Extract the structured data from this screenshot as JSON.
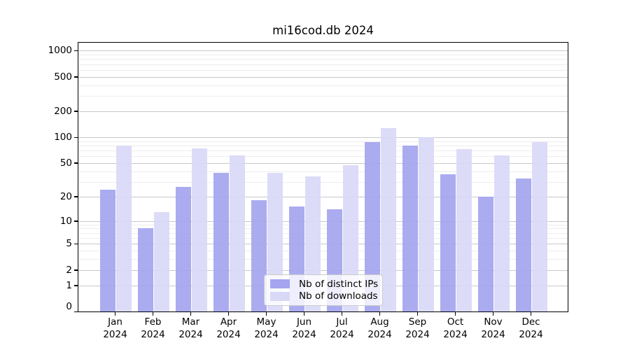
{
  "title": "mi16cod.db 2024",
  "chart_data": {
    "type": "bar",
    "title": "mi16cod.db 2024",
    "categories": [
      "Jan",
      "Feb",
      "Mar",
      "Apr",
      "May",
      "Jun",
      "Jul",
      "Aug",
      "Sep",
      "Oct",
      "Nov",
      "Dec"
    ],
    "x_tick_second_line": "2024",
    "series": [
      {
        "name": "Nb of distinct IPs",
        "color": "#a4a4ef",
        "values": [
          24,
          8,
          26,
          38,
          18,
          15,
          14,
          88,
          80,
          37,
          20,
          33
        ]
      },
      {
        "name": "Nb of downloads",
        "color": "#d9d9f7",
        "values": [
          80,
          13,
          74,
          62,
          38,
          35,
          47,
          128,
          101,
          73,
          62,
          88
        ]
      }
    ],
    "yscale": "log(value+1)",
    "yticks": [
      1000,
      500,
      200,
      100,
      50,
      20,
      10,
      5,
      2,
      1,
      0
    ],
    "ylim": [
      0,
      1230
    ],
    "grid": "major gray + minor light, horizontal only",
    "legend_position": "inside, lower center",
    "background_color": "#ffffff"
  }
}
